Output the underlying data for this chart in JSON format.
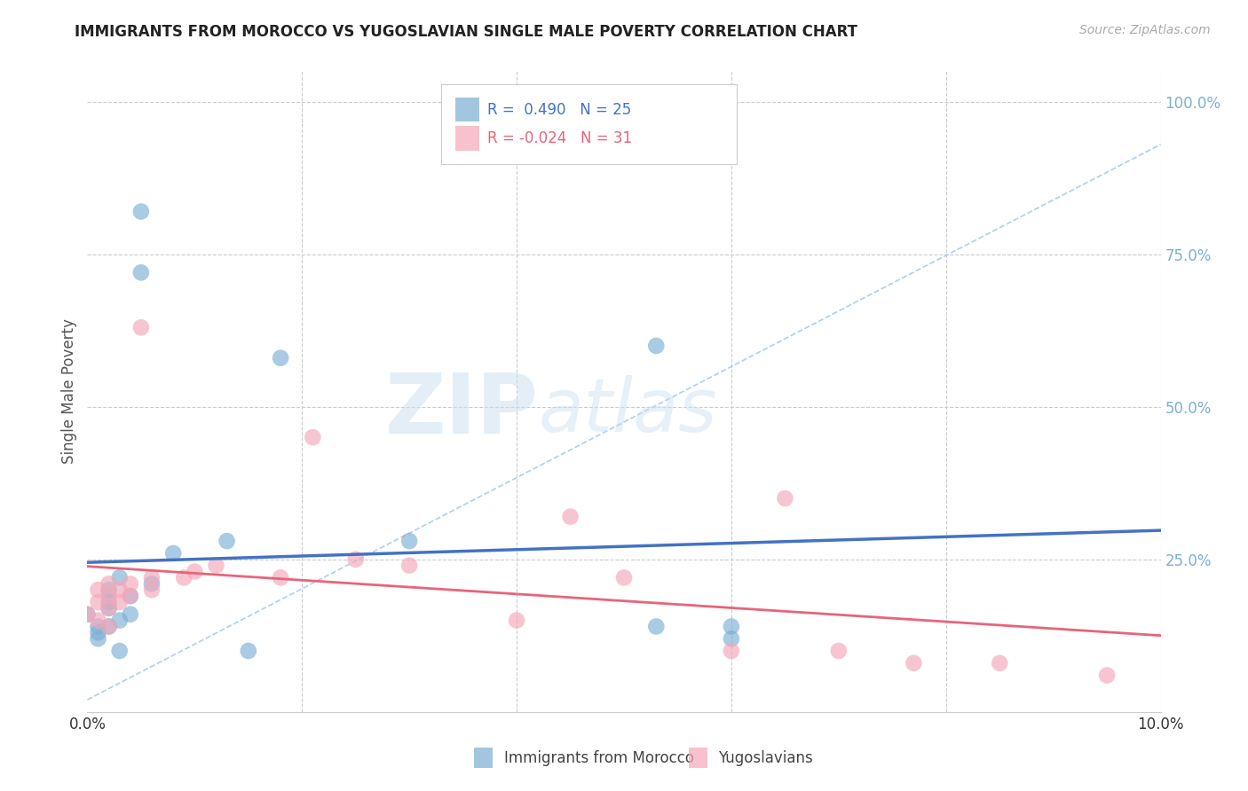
{
  "title": "IMMIGRANTS FROM MOROCCO VS YUGOSLAVIAN SINGLE MALE POVERTY CORRELATION CHART",
  "source": "Source: ZipAtlas.com",
  "ylabel": "Single Male Poverty",
  "legend_label1": "Immigrants from Morocco",
  "legend_label2": "Yugoslavians",
  "R1": 0.49,
  "N1": 25,
  "R2": -0.024,
  "N2": 31,
  "xlim": [
    0.0,
    0.1
  ],
  "ylim": [
    0.0,
    1.05
  ],
  "ylabel_right_labels": [
    "100.0%",
    "75.0%",
    "50.0%",
    "25.0%"
  ],
  "ylabel_right_values": [
    1.0,
    0.75,
    0.5,
    0.25
  ],
  "morocco_x": [
    0.0,
    0.001,
    0.001,
    0.001,
    0.002,
    0.002,
    0.002,
    0.002,
    0.003,
    0.003,
    0.003,
    0.004,
    0.004,
    0.005,
    0.005,
    0.006,
    0.008,
    0.013,
    0.015,
    0.018,
    0.03,
    0.053,
    0.053,
    0.06,
    0.06
  ],
  "morocco_y": [
    0.16,
    0.14,
    0.13,
    0.12,
    0.2,
    0.18,
    0.17,
    0.14,
    0.22,
    0.15,
    0.1,
    0.16,
    0.19,
    0.82,
    0.72,
    0.21,
    0.26,
    0.28,
    0.1,
    0.58,
    0.28,
    0.6,
    0.14,
    0.12,
    0.14
  ],
  "yugo_x": [
    0.0,
    0.001,
    0.001,
    0.001,
    0.002,
    0.002,
    0.002,
    0.002,
    0.003,
    0.003,
    0.004,
    0.004,
    0.005,
    0.006,
    0.006,
    0.009,
    0.01,
    0.012,
    0.018,
    0.021,
    0.025,
    0.03,
    0.04,
    0.045,
    0.05,
    0.06,
    0.065,
    0.07,
    0.077,
    0.085,
    0.095
  ],
  "yugo_y": [
    0.16,
    0.2,
    0.18,
    0.15,
    0.21,
    0.19,
    0.17,
    0.14,
    0.2,
    0.18,
    0.21,
    0.19,
    0.63,
    0.22,
    0.2,
    0.22,
    0.23,
    0.24,
    0.22,
    0.45,
    0.25,
    0.24,
    0.15,
    0.32,
    0.22,
    0.1,
    0.35,
    0.1,
    0.08,
    0.08,
    0.06
  ],
  "color_blue": "#7bafd4",
  "color_pink": "#f4a7b9",
  "color_line_blue": "#4472c4",
  "color_line_pink": "#e8647a",
  "color_dashed": "#a8c8f0",
  "color_grid": "#cccccc",
  "color_right_axis": "#7bafd4",
  "background_color": "#ffffff",
  "watermark_zip": "ZIP",
  "watermark_atlas": "atlas"
}
